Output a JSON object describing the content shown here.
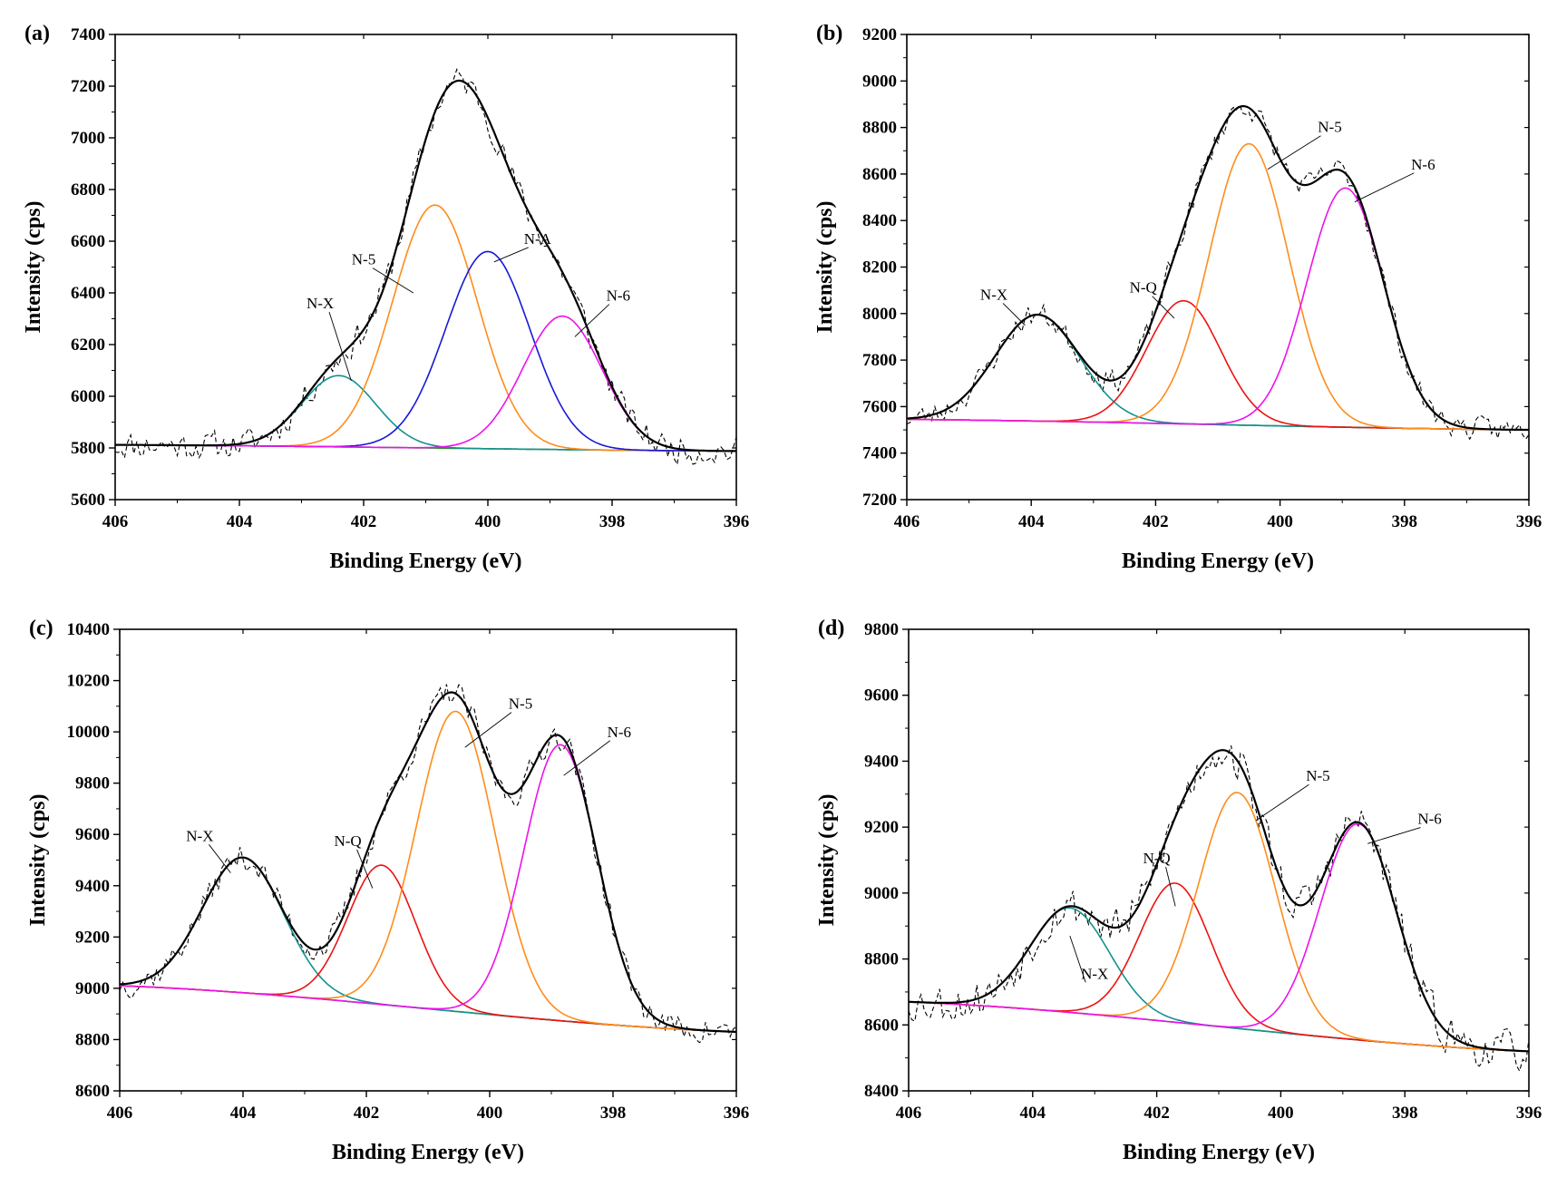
{
  "figure": {
    "panels": [
      "a",
      "b",
      "c",
      "d"
    ]
  },
  "colors": {
    "fit": "#000000",
    "raw": "#000000",
    "baseline": "#2e8b2e",
    "N-X": "#13918f",
    "N-Q": "#ee1111",
    "N-5": "#ff8c1a",
    "N-A": "#1818d8",
    "N-6": "#ee10ee"
  },
  "chart_data": [
    {
      "panel_label": "(a)",
      "type": "line",
      "xlabel": "Binding Energy (eV)",
      "ylabel": "Intensity (cps)",
      "xlim": [
        406,
        396
      ],
      "ylim": [
        5600,
        7400
      ],
      "xticks": [
        406,
        404,
        402,
        400,
        398,
        396
      ],
      "yticks": [
        5600,
        5800,
        6000,
        6200,
        6400,
        6600,
        6800,
        7000,
        7200,
        7400
      ],
      "baseline": [
        [
          406,
          5812
        ],
        [
          396,
          5788
        ]
      ],
      "peaks": [
        {
          "name": "N-X",
          "center": 402.4,
          "height": 6080,
          "fwhm": 1.4
        },
        {
          "name": "N-5",
          "center": 400.85,
          "height": 6740,
          "fwhm": 1.6
        },
        {
          "name": "N-A",
          "center": 400.0,
          "height": 6560,
          "fwhm": 1.6
        },
        {
          "name": "N-6",
          "center": 398.8,
          "height": 6310,
          "fwhm": 1.5
        }
      ],
      "labels": [
        {
          "text": "N-X",
          "at": [
            402.7,
            6340
          ],
          "to": [
            402.2,
            6060
          ]
        },
        {
          "text": "N-5",
          "at": [
            402.0,
            6510
          ],
          "to": [
            401.2,
            6400
          ]
        },
        {
          "text": "N-A",
          "at": [
            399.2,
            6590
          ],
          "to": [
            399.9,
            6520
          ]
        },
        {
          "text": "N-6",
          "at": [
            397.9,
            6370
          ],
          "to": [
            398.6,
            6230
          ]
        }
      ],
      "noise": 0.032,
      "noise_seed": 11
    },
    {
      "panel_label": "(b)",
      "type": "line",
      "xlabel": "Binding Energy (eV)",
      "ylabel": "Intensity (cps)",
      "xlim": [
        406,
        396
      ],
      "ylim": [
        7200,
        9200
      ],
      "xticks": [
        406,
        404,
        402,
        400,
        398,
        396
      ],
      "yticks": [
        7200,
        7400,
        7600,
        7800,
        8000,
        8200,
        8400,
        8600,
        8800,
        9000,
        9200
      ],
      "baseline": [
        [
          406,
          7545
        ],
        [
          396,
          7500
        ]
      ],
      "peaks": [
        {
          "name": "N-X",
          "center": 403.9,
          "height": 7995,
          "fwhm": 1.6
        },
        {
          "name": "N-Q",
          "center": 401.55,
          "height": 8055,
          "fwhm": 1.4
        },
        {
          "name": "N-5",
          "center": 400.5,
          "height": 8730,
          "fwhm": 1.5
        },
        {
          "name": "N-6",
          "center": 398.95,
          "height": 8540,
          "fwhm": 1.45
        }
      ],
      "labels": [
        {
          "text": "N-X",
          "at": [
            404.6,
            8060
          ],
          "to": [
            404.1,
            7950
          ]
        },
        {
          "text": "N-Q",
          "at": [
            402.2,
            8090
          ],
          "to": [
            401.7,
            7980
          ]
        },
        {
          "text": "N-5",
          "at": [
            399.2,
            8780
          ],
          "to": [
            400.2,
            8620
          ]
        },
        {
          "text": "N-6",
          "at": [
            397.7,
            8620
          ],
          "to": [
            398.8,
            8480
          ]
        }
      ],
      "noise": 0.026,
      "noise_seed": 23
    },
    {
      "panel_label": "(c)",
      "type": "line",
      "xlabel": "Binding Energy (eV)",
      "ylabel": "Intensity (cps)",
      "xlim": [
        406,
        396
      ],
      "ylim": [
        8600,
        10400
      ],
      "xticks": [
        406,
        404,
        402,
        400,
        398,
        396
      ],
      "yticks": [
        8600,
        8800,
        9000,
        9200,
        9400,
        9600,
        9800,
        10000,
        10200,
        10400
      ],
      "baseline": [
        [
          406,
          9010
        ],
        [
          396,
          8830
        ]
      ],
      "peaks": [
        {
          "name": "N-X",
          "center": 404.0,
          "height": 9510,
          "fwhm": 1.55
        },
        {
          "name": "N-Q",
          "center": 401.75,
          "height": 9480,
          "fwhm": 1.3
        },
        {
          "name": "N-5",
          "center": 400.55,
          "height": 10080,
          "fwhm": 1.5
        },
        {
          "name": "N-6",
          "center": 398.85,
          "height": 9950,
          "fwhm": 1.4
        }
      ],
      "labels": [
        {
          "text": "N-X",
          "at": [
            404.7,
            9575
          ],
          "to": [
            404.2,
            9450
          ]
        },
        {
          "text": "N-Q",
          "at": [
            402.3,
            9555
          ],
          "to": [
            401.9,
            9390
          ]
        },
        {
          "text": "N-5",
          "at": [
            399.5,
            10090
          ],
          "to": [
            400.4,
            9940
          ]
        },
        {
          "text": "N-6",
          "at": [
            397.9,
            9980
          ],
          "to": [
            398.8,
            9830
          ]
        }
      ],
      "noise": 0.03,
      "noise_seed": 37
    },
    {
      "panel_label": "(d)",
      "type": "line",
      "xlabel": "Binding Energy (eV)",
      "ylabel": "Intensity (cps)",
      "xlim": [
        406,
        396
      ],
      "ylim": [
        8400,
        9800
      ],
      "xticks": [
        406,
        404,
        402,
        400,
        398,
        396
      ],
      "yticks": [
        8400,
        8600,
        8800,
        9000,
        9200,
        9400,
        9600,
        9800
      ],
      "baseline": [
        [
          406,
          8670
        ],
        [
          396,
          8520
        ]
      ],
      "peaks": [
        {
          "name": "N-X",
          "center": 403.4,
          "height": 8955,
          "fwhm": 1.5
        },
        {
          "name": "N-Q",
          "center": 401.7,
          "height": 9030,
          "fwhm": 1.35
        },
        {
          "name": "N-5",
          "center": 400.7,
          "height": 9305,
          "fwhm": 1.45
        },
        {
          "name": "N-6",
          "center": 398.75,
          "height": 9210,
          "fwhm": 1.45
        }
      ],
      "labels": [
        {
          "text": "N-X",
          "at": [
            403.0,
            8740
          ],
          "to": [
            403.4,
            8870
          ]
        },
        {
          "text": "N-Q",
          "at": [
            402.0,
            9090
          ],
          "to": [
            401.7,
            8960
          ]
        },
        {
          "text": "N-5",
          "at": [
            399.4,
            9340
          ],
          "to": [
            400.4,
            9220
          ]
        },
        {
          "text": "N-6",
          "at": [
            397.6,
            9210
          ],
          "to": [
            398.6,
            9150
          ]
        }
      ],
      "noise": 0.045,
      "noise_seed": 53
    }
  ]
}
